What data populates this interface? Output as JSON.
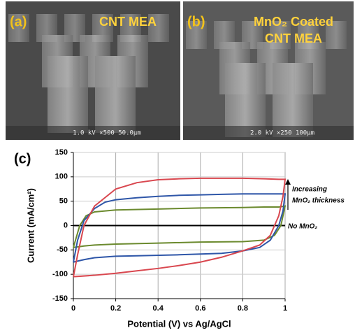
{
  "panels": [
    {
      "label": "(a)",
      "title_lines": [
        "CNT MEA"
      ],
      "scale_bar": "1.0 kV  ×500  50.0μm"
    },
    {
      "label": "(b)",
      "title_lines": [
        "MnO₂ Coated",
        "CNT MEA"
      ],
      "scale_bar": "2.0 kV  ×250  100μm"
    }
  ],
  "chart_data": {
    "type": "line",
    "panel_label": "(c)",
    "xlabel": "Potential (V) vs Ag/AgCl",
    "ylabel": "Current (mA/cm²)",
    "xlim": [
      0,
      1
    ],
    "xticks": [
      0,
      0.2,
      0.4,
      0.6,
      0.8,
      1
    ],
    "ylim": [
      -150,
      150
    ],
    "yticks": [
      -150,
      -100,
      -50,
      0,
      50,
      100,
      150
    ],
    "grid": true,
    "series": [
      {
        "color": "#000000",
        "x": [
          0,
          1
        ],
        "values": [
          0,
          0
        ]
      },
      {
        "color": "#6b8a2e",
        "x": [
          0,
          0.03,
          0.06,
          0.1,
          0.2,
          0.4,
          0.6,
          0.8,
          0.9,
          0.97,
          1,
          0.98,
          0.95,
          0.9,
          0.8,
          0.6,
          0.4,
          0.2,
          0.1,
          0.05,
          0
        ],
        "values": [
          -45,
          0,
          20,
          28,
          32,
          34,
          36,
          37,
          38,
          38,
          40,
          0,
          -20,
          -30,
          -33,
          -34,
          -36,
          -38,
          -40,
          -42,
          -45
        ]
      },
      {
        "color": "#2e56a8",
        "x": [
          0,
          0.02,
          0.05,
          0.1,
          0.15,
          0.2,
          0.3,
          0.4,
          0.5,
          0.6,
          0.7,
          0.8,
          0.9,
          1,
          0.99,
          0.97,
          0.93,
          0.88,
          0.8,
          0.7,
          0.5,
          0.3,
          0.2,
          0.1,
          0.05,
          0
        ],
        "values": [
          -75,
          -30,
          10,
          35,
          48,
          53,
          57,
          60,
          62,
          63,
          64,
          65,
          65,
          65,
          30,
          0,
          -30,
          -45,
          -52,
          -57,
          -60,
          -62,
          -63,
          -66,
          -70,
          -75
        ]
      },
      {
        "color": "#d9474f",
        "x": [
          0,
          0.02,
          0.05,
          0.1,
          0.2,
          0.3,
          0.4,
          0.5,
          0.6,
          0.7,
          0.8,
          0.9,
          0.97,
          1,
          0.99,
          0.97,
          0.93,
          0.88,
          0.8,
          0.7,
          0.6,
          0.5,
          0.4,
          0.3,
          0.2,
          0.1,
          0
        ],
        "values": [
          -105,
          -60,
          0,
          40,
          75,
          88,
          94,
          96,
          97,
          97,
          97,
          96,
          95,
          95,
          60,
          20,
          -20,
          -40,
          -52,
          -65,
          -75,
          -82,
          -88,
          -93,
          -98,
          -102,
          -105
        ]
      }
    ],
    "annotations": [
      {
        "lines": [
          "Increasing",
          "MnO₂ thickness"
        ]
      },
      {
        "lines": [
          "No MnO₂"
        ]
      }
    ]
  }
}
